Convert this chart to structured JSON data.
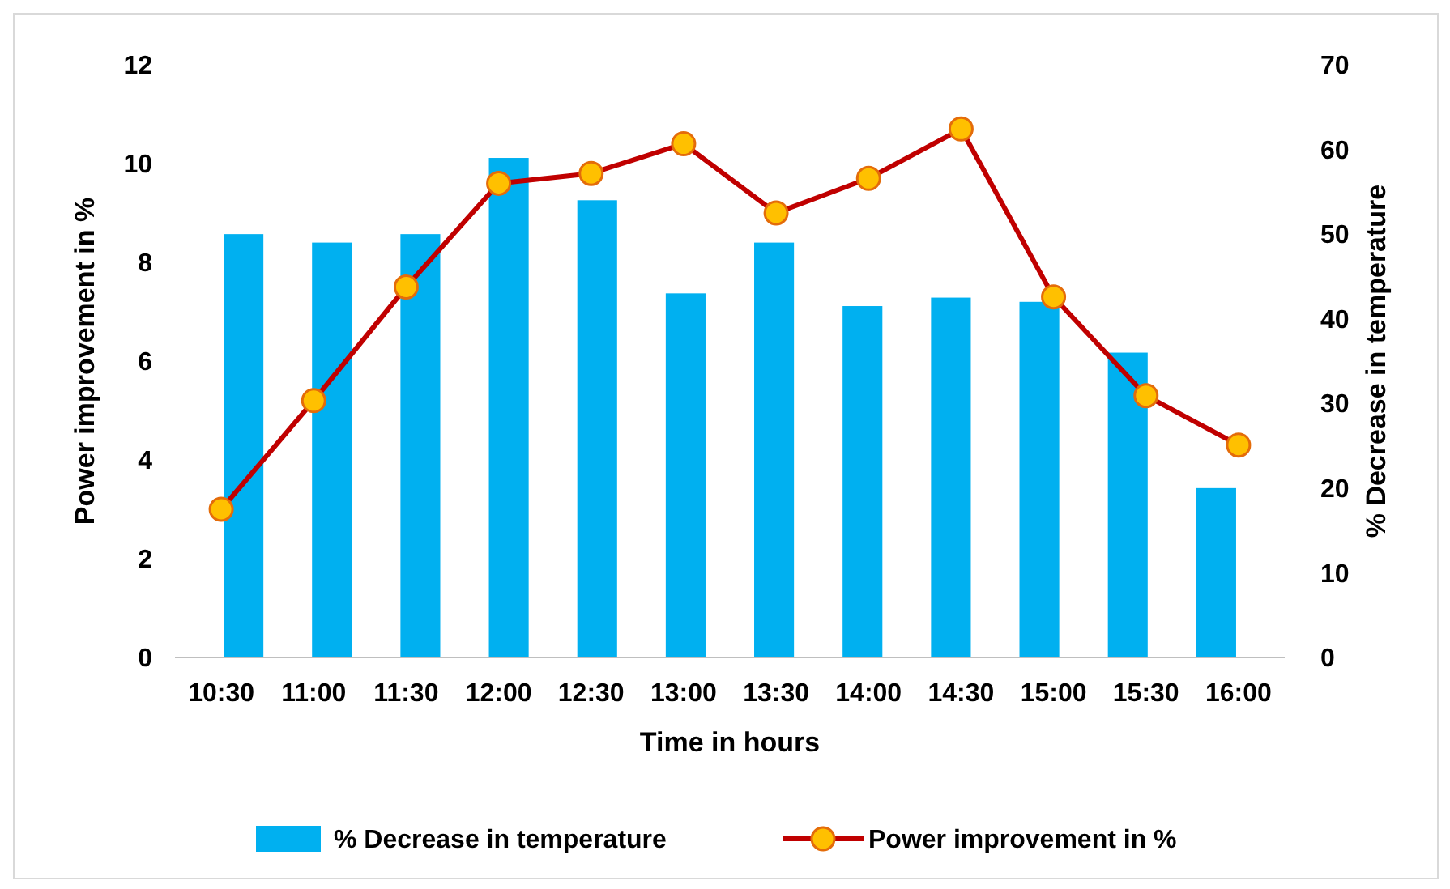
{
  "chart_data": {
    "type": "bar",
    "xlabel": "Time in hours",
    "ylabel": "Power improvement in %",
    "y2label": "% Decrease in temperature",
    "categories": [
      "10:30",
      "11:00",
      "11:30",
      "12:00",
      "12:30",
      "13:00",
      "13:30",
      "14:00",
      "14:30",
      "15:00",
      "15:30",
      "16:00"
    ],
    "series": [
      {
        "name": "% Decrease in temperature",
        "axis": "y2",
        "color": "#00b0f0",
        "values": [
          50,
          49,
          50,
          59,
          54,
          43,
          49,
          41.5,
          42.5,
          42,
          36,
          20
        ]
      },
      {
        "name": "Power improvement in %",
        "type": "line",
        "axis": "y",
        "color": "#c00000",
        "marker": "circle",
        "values": [
          3.0,
          5.2,
          7.5,
          9.6,
          9.8,
          10.4,
          9.0,
          9.7,
          10.7,
          7.3,
          5.3,
          4.3
        ]
      }
    ],
    "ylim": [
      0,
      12
    ],
    "yticks": [
      0,
      2,
      4,
      6,
      8,
      10,
      12
    ],
    "y2lim": [
      0,
      70
    ],
    "y2ticks": [
      0,
      10,
      20,
      30,
      40,
      50,
      60,
      70
    ],
    "legend": "bottom",
    "grid": false
  }
}
